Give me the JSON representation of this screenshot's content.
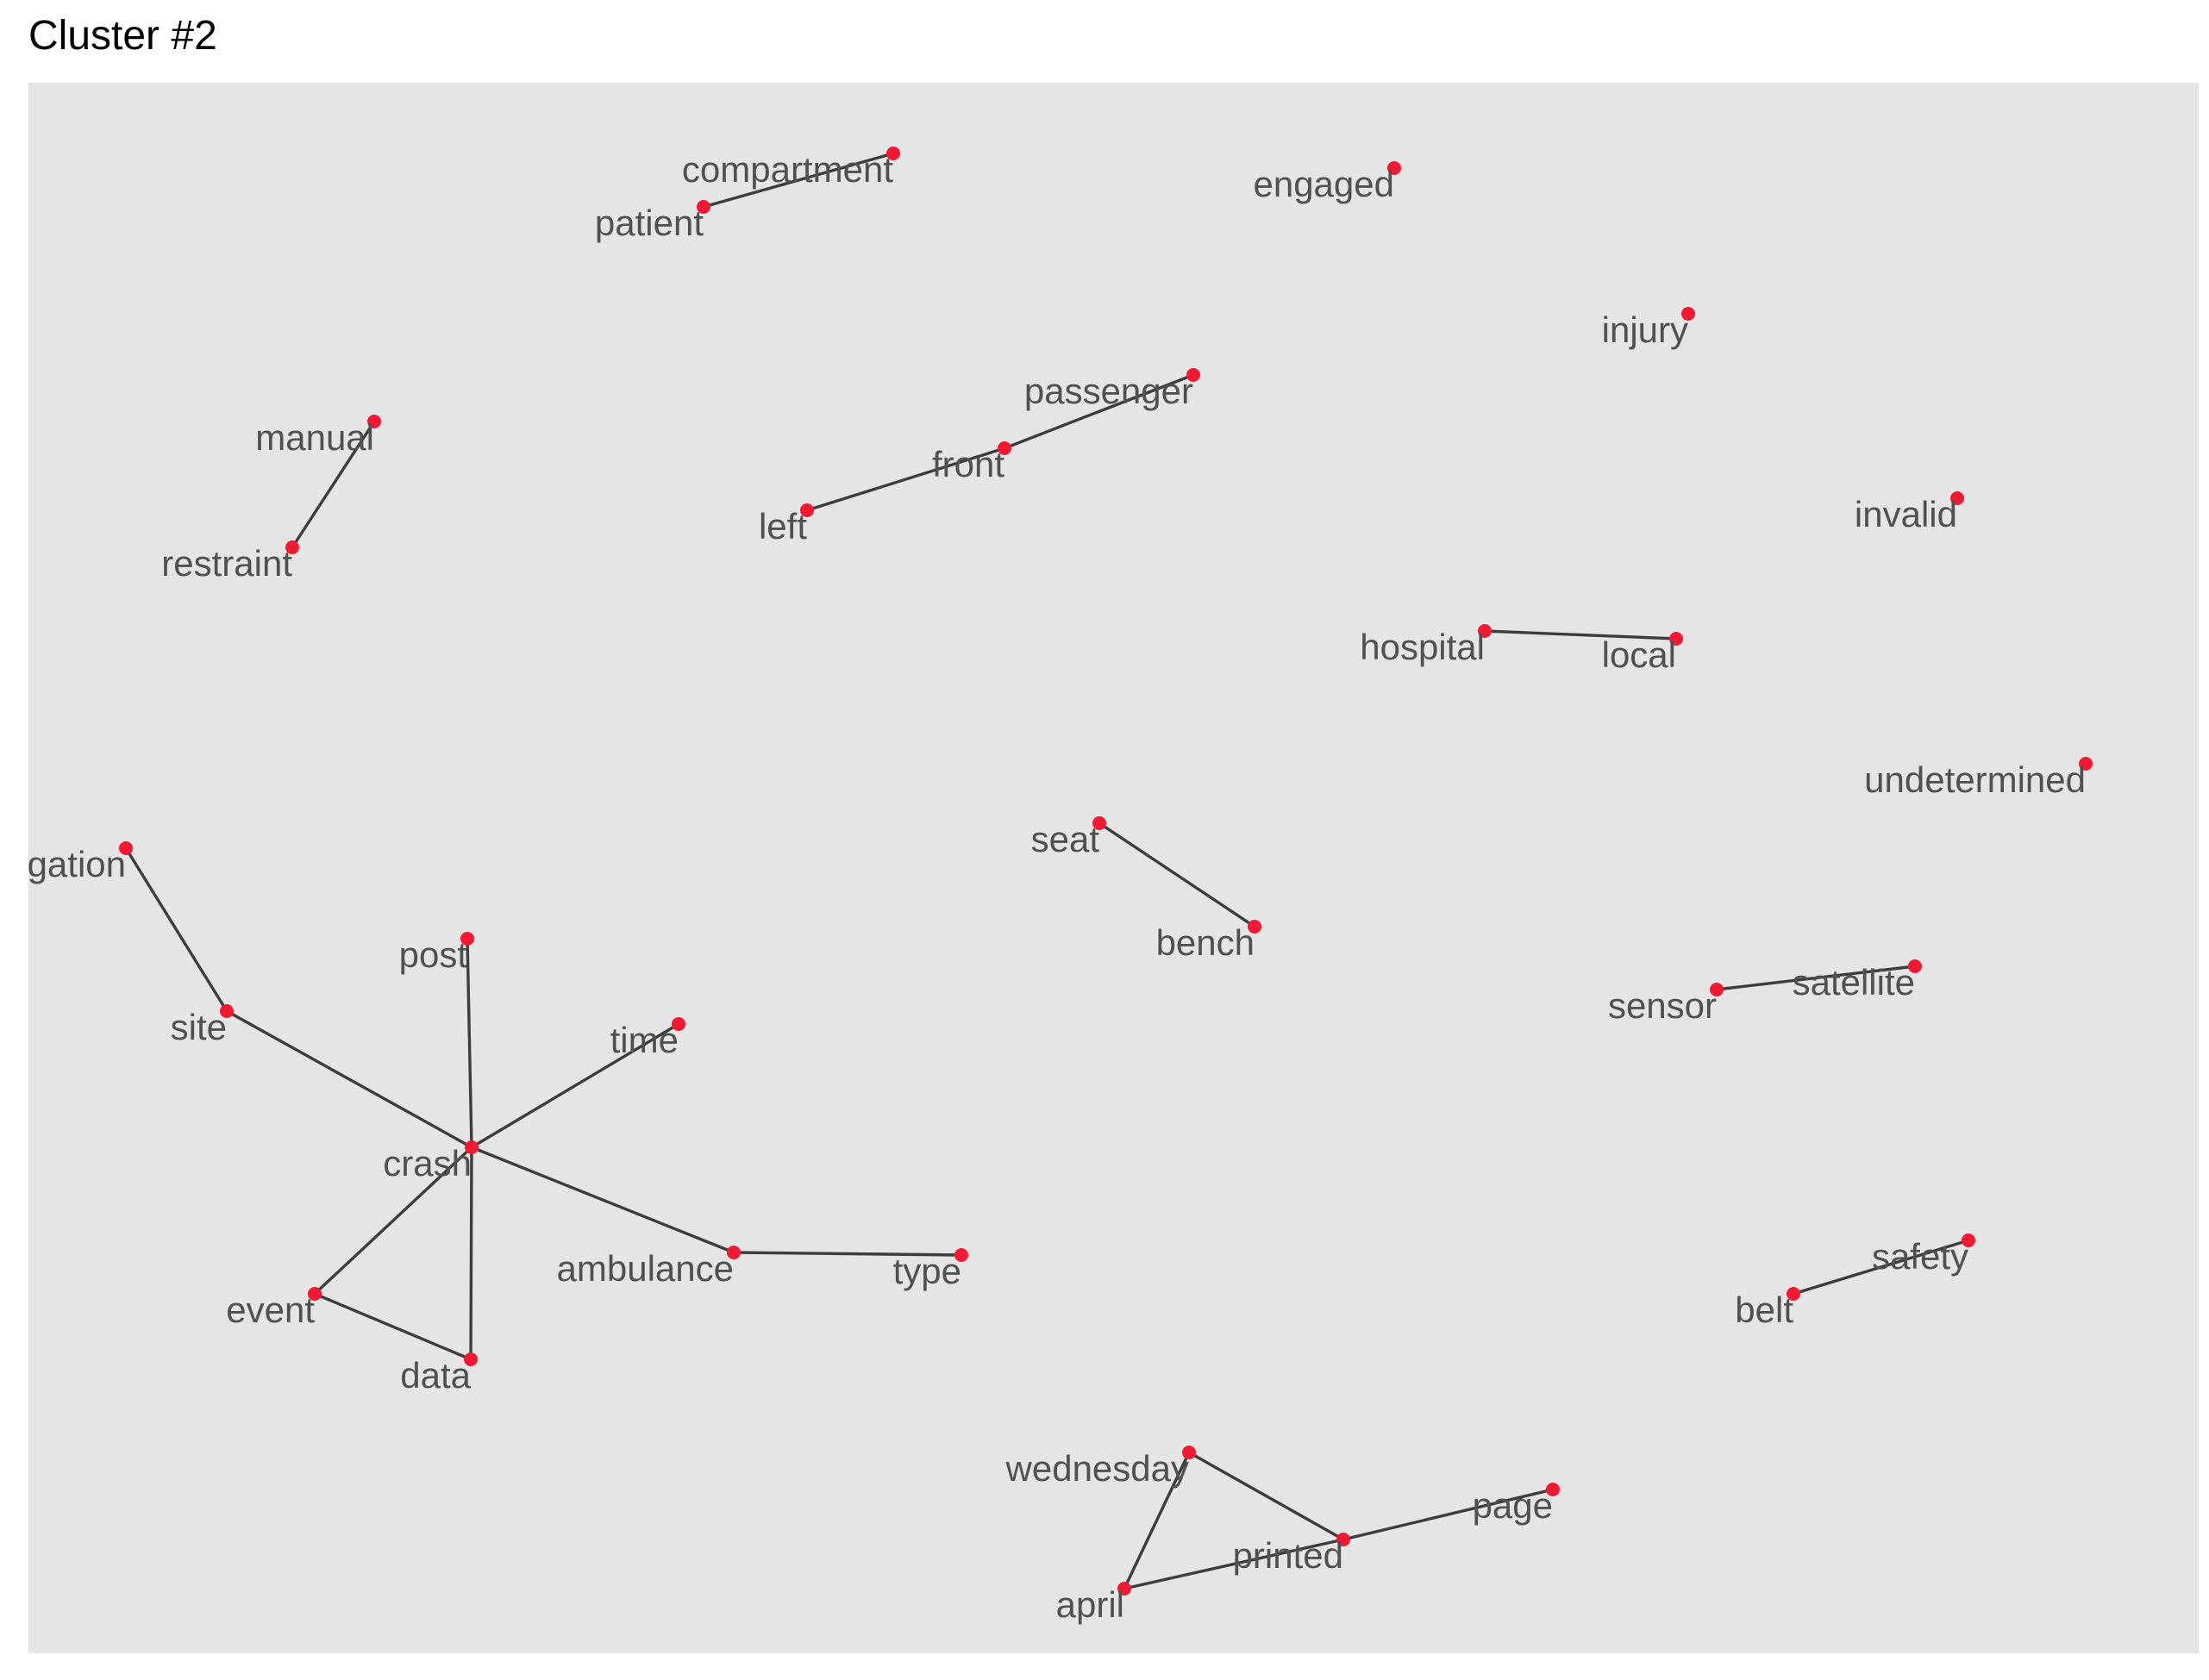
{
  "title": "Cluster #2",
  "colors": {
    "panel": "#e5e5e5",
    "edge": "#3d3d3d",
    "node": "#f21933",
    "label": "#505050"
  },
  "nodes": [
    {
      "id": "compartment",
      "label": "compartment"
    },
    {
      "id": "patient",
      "label": "patient"
    },
    {
      "id": "engaged",
      "label": "engaged"
    },
    {
      "id": "injury",
      "label": "injury"
    },
    {
      "id": "passenger",
      "label": "passenger"
    },
    {
      "id": "front",
      "label": "front"
    },
    {
      "id": "left",
      "label": "left"
    },
    {
      "id": "manual",
      "label": "manual"
    },
    {
      "id": "restraint",
      "label": "restraint"
    },
    {
      "id": "invalid",
      "label": "invalid"
    },
    {
      "id": "hospital",
      "label": "hospital"
    },
    {
      "id": "local",
      "label": "local"
    },
    {
      "id": "undetermined",
      "label": "undetermined"
    },
    {
      "id": "investigation",
      "label": "investigation"
    },
    {
      "id": "seat",
      "label": "seat"
    },
    {
      "id": "bench",
      "label": "bench"
    },
    {
      "id": "post",
      "label": "post"
    },
    {
      "id": "site",
      "label": "site"
    },
    {
      "id": "time",
      "label": "time"
    },
    {
      "id": "sensor",
      "label": "sensor"
    },
    {
      "id": "satellite",
      "label": "satellite"
    },
    {
      "id": "crash",
      "label": "crash"
    },
    {
      "id": "ambulance",
      "label": "ambulance"
    },
    {
      "id": "type",
      "label": "type"
    },
    {
      "id": "event",
      "label": "event"
    },
    {
      "id": "data",
      "label": "data"
    },
    {
      "id": "safety",
      "label": "safety"
    },
    {
      "id": "belt",
      "label": "belt"
    },
    {
      "id": "wednesday",
      "label": "wednesday"
    },
    {
      "id": "page",
      "label": "page"
    },
    {
      "id": "printed",
      "label": "printed"
    },
    {
      "id": "april",
      "label": "april"
    }
  ],
  "edges": [
    [
      "patient",
      "compartment"
    ],
    [
      "left",
      "front"
    ],
    [
      "front",
      "passenger"
    ],
    [
      "manual",
      "restraint"
    ],
    [
      "hospital",
      "local"
    ],
    [
      "seat",
      "bench"
    ],
    [
      "sensor",
      "satellite"
    ],
    [
      "investigation",
      "site"
    ],
    [
      "site",
      "crash"
    ],
    [
      "post",
      "crash"
    ],
    [
      "time",
      "crash"
    ],
    [
      "crash",
      "ambulance"
    ],
    [
      "ambulance",
      "type"
    ],
    [
      "crash",
      "event"
    ],
    [
      "crash",
      "data"
    ],
    [
      "event",
      "data"
    ],
    [
      "belt",
      "safety"
    ],
    [
      "wednesday",
      "printed"
    ],
    [
      "wednesday",
      "april"
    ],
    [
      "april",
      "printed"
    ],
    [
      "printed",
      "page"
    ]
  ]
}
